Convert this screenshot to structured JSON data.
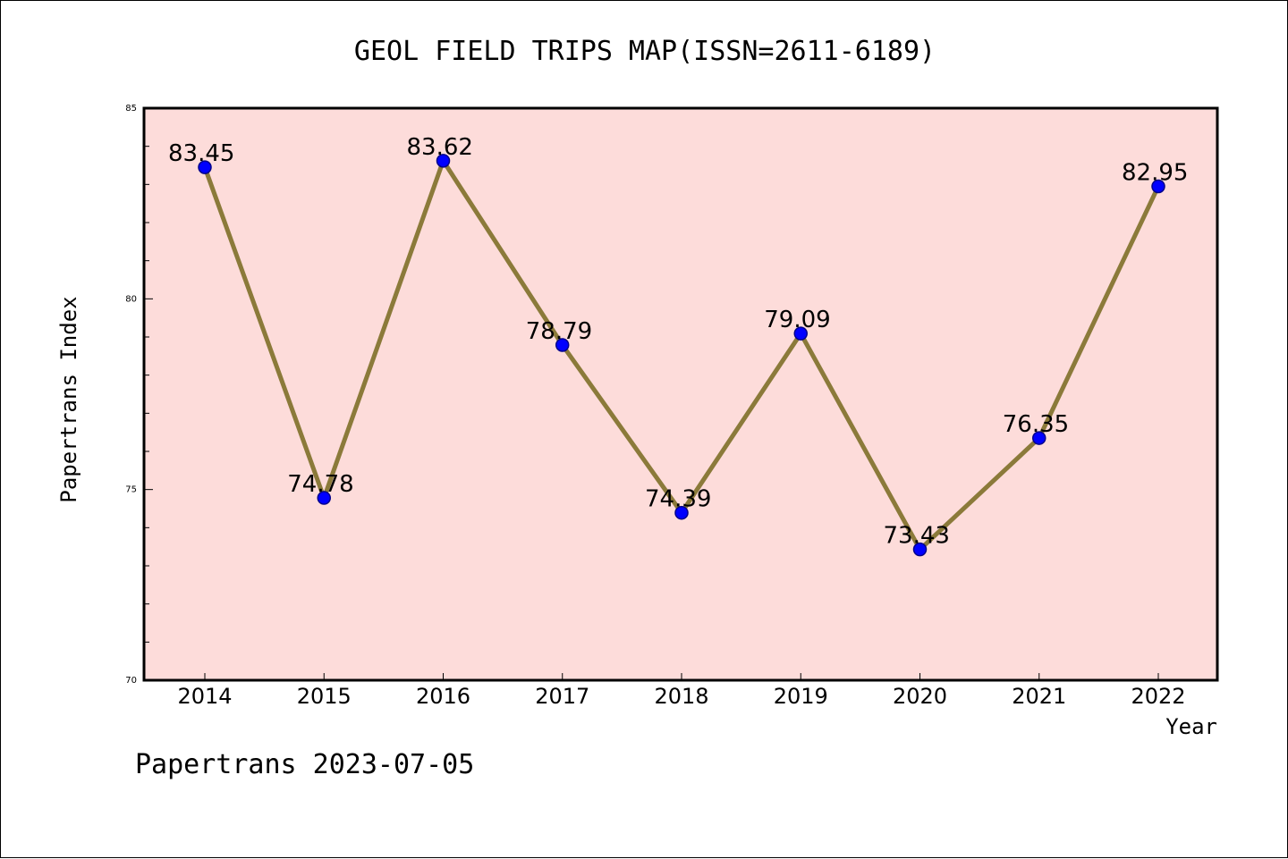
{
  "colors": {
    "plot_background": "#fddcda",
    "line": "#8b7a3a",
    "marker_fill": "#0000ff",
    "marker_edge": "#00008b"
  },
  "footer": "Papertrans 2023-07-05",
  "chart_data": {
    "type": "line",
    "title": "GEOL FIELD TRIPS MAP(ISSN=2611-6189)",
    "xlabel": "Year",
    "ylabel": "Papertrans Index",
    "categories": [
      "2014",
      "2015",
      "2016",
      "2017",
      "2018",
      "2019",
      "2020",
      "2021",
      "2022"
    ],
    "series": [
      {
        "values": [
          83.45,
          74.78,
          83.62,
          78.79,
          74.39,
          79.09,
          73.43,
          76.35,
          82.95
        ]
      }
    ],
    "data_labels": [
      "83.45",
      "74.78",
      "83.62",
      "78.79",
      "74.39",
      "79.09",
      "73.43",
      "76.35",
      "82.95"
    ],
    "ylim": [
      70,
      85
    ],
    "yticks": [
      "70",
      "75",
      "80",
      "85"
    ],
    "grid": false,
    "legend": "none"
  }
}
